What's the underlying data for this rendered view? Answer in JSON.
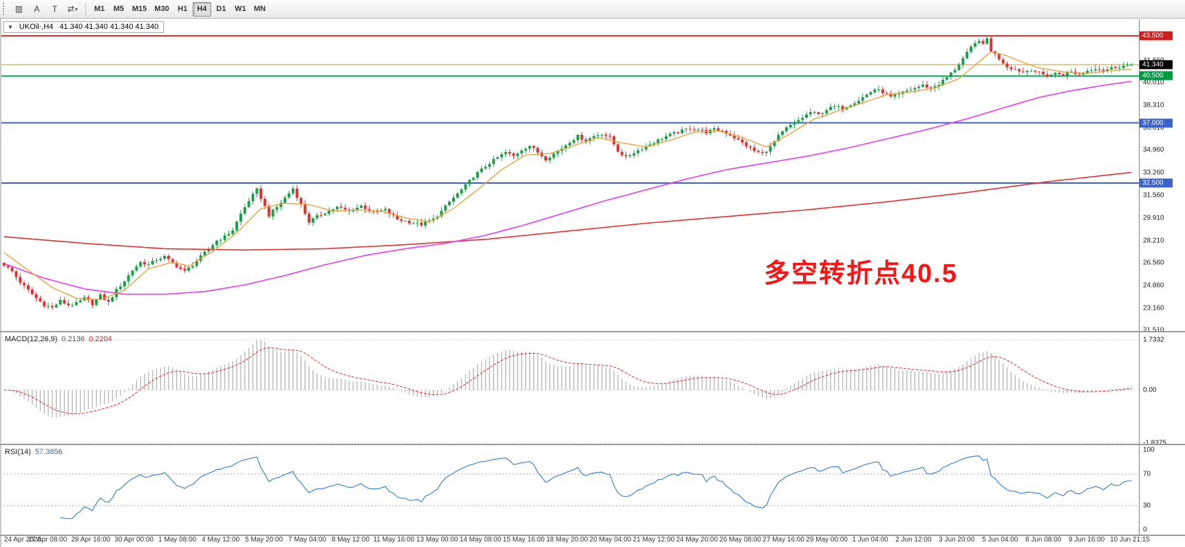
{
  "toolbar": {
    "icons": [
      {
        "name": "chart-grid-icon",
        "glyph": "▥"
      },
      {
        "name": "annotation-a-icon",
        "glyph": "A"
      },
      {
        "name": "text-tool-icon",
        "glyph": "T"
      },
      {
        "name": "cycles-tool-icon",
        "glyph": "⇄"
      }
    ],
    "dropdown_arrow": "▾",
    "timeframes": [
      "M1",
      "M5",
      "M15",
      "M30",
      "H1",
      "H4",
      "D1",
      "W1",
      "MN"
    ],
    "active_timeframe": "H4"
  },
  "chart": {
    "collapse_arrow": "▼",
    "symbol_title": "UKOil·,H4",
    "ohlc": "41.340 41.340 41.340 41.340",
    "annotation": "多空转折点40.5",
    "current_price": "41.340",
    "price_ticks": [
      {
        "label": "41.660",
        "price": 41.66
      },
      {
        "label": "40.010",
        "price": 40.01
      },
      {
        "label": "38.310",
        "price": 38.31
      },
      {
        "label": "36.610",
        "price": 36.61
      },
      {
        "label": "34.960",
        "price": 34.96
      },
      {
        "label": "33.260",
        "price": 33.26
      },
      {
        "label": "31.560",
        "price": 31.56
      },
      {
        "label": "29.910",
        "price": 29.91
      },
      {
        "label": "28.210",
        "price": 28.21
      },
      {
        "label": "26.560",
        "price": 26.56
      },
      {
        "label": "24.860",
        "price": 24.86
      },
      {
        "label": "23.160",
        "price": 23.16
      },
      {
        "label": "21.510",
        "price": 21.51
      }
    ],
    "badges": [
      {
        "label": "43.500",
        "price": 43.5,
        "color": "#cc2020"
      },
      {
        "label": "41.340",
        "price": 41.34,
        "color": "#000000"
      },
      {
        "label": "40.500",
        "price": 40.5,
        "color": "#009a42"
      },
      {
        "label": "37.000",
        "price": 37.0,
        "color": "#3a62c8"
      },
      {
        "label": "32.500",
        "price": 32.5,
        "color": "#3a62c8"
      }
    ]
  },
  "macd": {
    "name": "MACD(12,26,9)",
    "value_main": "0.2136",
    "value_signal": "0.2204",
    "ticks": [
      {
        "label": "1.7332",
        "value": 1.7332
      },
      {
        "label": "0.00",
        "value": 0
      },
      {
        "label": "-1.8375",
        "value": -1.8375
      }
    ]
  },
  "rsi": {
    "name": "RSI(14)",
    "value": "57.3856",
    "ticks": [
      {
        "label": "100",
        "value": 100
      },
      {
        "label": "70",
        "value": 70
      },
      {
        "label": "30",
        "value": 30
      },
      {
        "label": "0",
        "value": 0
      }
    ]
  },
  "time_axis": {
    "labels": [
      "24 Apr 2020",
      "27 Apr 08:00",
      "28 Apr 16:00",
      "30 Apr 00:00",
      "1 May 08:00",
      "4 May 12:00",
      "5 May 20:00",
      "7 May 04:00",
      "8 May 12:00",
      "11 May 16:00",
      "13 May 00:00",
      "14 May 08:00",
      "15 May 16:00",
      "18 May 20:00",
      "20 May 04:00",
      "21 May 12:00",
      "24 May 20:00",
      "26 May 08:00",
      "27 May 16:00",
      "29 May 00:00",
      "1 Jun 04:00",
      "2 Jun 12:00",
      "3 Jun 20:00",
      "5 Jun 04:00",
      "8 Jun 08:00",
      "9 Jun 16:00",
      "10 Jun 21:15"
    ]
  },
  "chart_data": {
    "type": "candlestick",
    "symbol": "UKOil",
    "timeframe": "H4",
    "last_close": 41.34,
    "price_range": [
      21.51,
      43.5
    ],
    "num_candles": 282,
    "close_anchors": [
      [
        0,
        26.4
      ],
      [
        2,
        25.9
      ],
      [
        4,
        25.1
      ],
      [
        6,
        24.5
      ],
      [
        8,
        23.9
      ],
      [
        10,
        23.4
      ],
      [
        12,
        23.2
      ],
      [
        14,
        23.7
      ],
      [
        16,
        23.4
      ],
      [
        18,
        23.5
      ],
      [
        20,
        23.9
      ],
      [
        22,
        23.5
      ],
      [
        24,
        24.1
      ],
      [
        26,
        23.6
      ],
      [
        28,
        24.5
      ],
      [
        30,
        25.2
      ],
      [
        32,
        26.0
      ],
      [
        34,
        26.6
      ],
      [
        36,
        26.4
      ],
      [
        38,
        26.8
      ],
      [
        40,
        27.0
      ],
      [
        42,
        26.5
      ],
      [
        44,
        26.1
      ],
      [
        45,
        25.9
      ],
      [
        47,
        26.4
      ],
      [
        49,
        27.0
      ],
      [
        51,
        27.6
      ],
      [
        53,
        28.2
      ],
      [
        55,
        28.5
      ],
      [
        57,
        29.0
      ],
      [
        59,
        30.2
      ],
      [
        61,
        31.2
      ],
      [
        63,
        32.0
      ],
      [
        64,
        31.4
      ],
      [
        66,
        30.1
      ],
      [
        68,
        30.7
      ],
      [
        70,
        31.4
      ],
      [
        72,
        32.1
      ],
      [
        74,
        30.9
      ],
      [
        76,
        29.6
      ],
      [
        78,
        30.0
      ],
      [
        80,
        30.3
      ],
      [
        83,
        30.7
      ],
      [
        86,
        30.4
      ],
      [
        89,
        30.8
      ],
      [
        92,
        30.3
      ],
      [
        95,
        30.5
      ],
      [
        98,
        29.8
      ],
      [
        101,
        29.6
      ],
      [
        104,
        29.4
      ],
      [
        107,
        29.8
      ],
      [
        109,
        30.4
      ],
      [
        111,
        31.1
      ],
      [
        113,
        31.7
      ],
      [
        115,
        32.3
      ],
      [
        117,
        33.0
      ],
      [
        119,
        33.5
      ],
      [
        121,
        34.0
      ],
      [
        123,
        34.4
      ],
      [
        125,
        34.8
      ],
      [
        127,
        34.5
      ],
      [
        129,
        35.0
      ],
      [
        131,
        35.3
      ],
      [
        133,
        34.8
      ],
      [
        135,
        34.3
      ],
      [
        137,
        34.7
      ],
      [
        139,
        35.1
      ],
      [
        141,
        35.6
      ],
      [
        143,
        36.0
      ],
      [
        145,
        35.7
      ],
      [
        147,
        36.0
      ],
      [
        149,
        36.2
      ],
      [
        151,
        35.9
      ],
      [
        153,
        34.9
      ],
      [
        155,
        34.4
      ],
      [
        157,
        34.8
      ],
      [
        159,
        35.1
      ],
      [
        161,
        35.4
      ],
      [
        163,
        35.7
      ],
      [
        165,
        36.0
      ],
      [
        167,
        36.2
      ],
      [
        169,
        36.4
      ],
      [
        171,
        36.6
      ],
      [
        173,
        36.5
      ],
      [
        175,
        36.3
      ],
      [
        177,
        36.5
      ],
      [
        179,
        36.4
      ],
      [
        181,
        36.1
      ],
      [
        183,
        35.7
      ],
      [
        185,
        35.3
      ],
      [
        187,
        34.9
      ],
      [
        189,
        34.7
      ],
      [
        191,
        35.2
      ],
      [
        193,
        36.0
      ],
      [
        195,
        36.6
      ],
      [
        197,
        37.0
      ],
      [
        199,
        37.4
      ],
      [
        201,
        37.8
      ],
      [
        203,
        37.6
      ],
      [
        205,
        38.0
      ],
      [
        207,
        38.2
      ],
      [
        209,
        38.1
      ],
      [
        211,
        38.4
      ],
      [
        213,
        38.7
      ],
      [
        215,
        39.1
      ],
      [
        217,
        39.5
      ],
      [
        219,
        39.3
      ],
      [
        221,
        38.9
      ],
      [
        223,
        39.1
      ],
      [
        225,
        39.4
      ],
      [
        227,
        39.6
      ],
      [
        229,
        39.8
      ],
      [
        231,
        39.6
      ],
      [
        233,
        39.9
      ],
      [
        235,
        40.4
      ],
      [
        237,
        41.0
      ],
      [
        239,
        41.8
      ],
      [
        241,
        42.6
      ],
      [
        243,
        43.2
      ],
      [
        244,
        42.8
      ],
      [
        245,
        43.3
      ],
      [
        246,
        42.4
      ],
      [
        248,
        41.8
      ],
      [
        250,
        41.2
      ],
      [
        252,
        41.0
      ],
      [
        254,
        40.8
      ],
      [
        256,
        41.0
      ],
      [
        258,
        40.7
      ],
      [
        260,
        40.5
      ],
      [
        262,
        40.7
      ],
      [
        264,
        40.6
      ],
      [
        266,
        40.8
      ],
      [
        268,
        40.6
      ],
      [
        270,
        40.9
      ],
      [
        272,
        41.1
      ],
      [
        274,
        40.9
      ],
      [
        276,
        41.1
      ],
      [
        278,
        41.2
      ],
      [
        281,
        41.34
      ]
    ],
    "ma_fast_anchors": [
      [
        0,
        27.3
      ],
      [
        6,
        26.0
      ],
      [
        12,
        24.7
      ],
      [
        18,
        23.9
      ],
      [
        24,
        23.8
      ],
      [
        30,
        24.5
      ],
      [
        36,
        26.1
      ],
      [
        42,
        26.6
      ],
      [
        46,
        26.3
      ],
      [
        52,
        27.4
      ],
      [
        58,
        28.8
      ],
      [
        64,
        30.6
      ],
      [
        70,
        31.0
      ],
      [
        76,
        30.9
      ],
      [
        82,
        30.4
      ],
      [
        88,
        30.5
      ],
      [
        94,
        30.4
      ],
      [
        100,
        29.9
      ],
      [
        106,
        29.6
      ],
      [
        112,
        30.6
      ],
      [
        118,
        32.0
      ],
      [
        124,
        33.5
      ],
      [
        130,
        34.6
      ],
      [
        136,
        34.7
      ],
      [
        142,
        35.3
      ],
      [
        148,
        35.9
      ],
      [
        154,
        35.5
      ],
      [
        160,
        35.2
      ],
      [
        166,
        35.7
      ],
      [
        172,
        36.3
      ],
      [
        178,
        36.4
      ],
      [
        184,
        35.9
      ],
      [
        190,
        35.2
      ],
      [
        196,
        36.2
      ],
      [
        202,
        37.3
      ],
      [
        208,
        37.9
      ],
      [
        214,
        38.5
      ],
      [
        220,
        39.1
      ],
      [
        226,
        39.3
      ],
      [
        232,
        39.6
      ],
      [
        238,
        40.3
      ],
      [
        242,
        41.3
      ],
      [
        246,
        42.3
      ],
      [
        250,
        42.0
      ],
      [
        254,
        41.5
      ],
      [
        258,
        41.1
      ],
      [
        264,
        40.8
      ],
      [
        270,
        40.7
      ],
      [
        276,
        40.9
      ],
      [
        281,
        41.0
      ]
    ],
    "ma_mid_anchors": [
      [
        0,
        26.5
      ],
      [
        10,
        25.4
      ],
      [
        20,
        24.6
      ],
      [
        30,
        24.2
      ],
      [
        40,
        24.2
      ],
      [
        50,
        24.4
      ],
      [
        60,
        24.9
      ],
      [
        70,
        25.6
      ],
      [
        80,
        26.4
      ],
      [
        90,
        27.1
      ],
      [
        100,
        27.6
      ],
      [
        110,
        28.0
      ],
      [
        120,
        28.6
      ],
      [
        130,
        29.4
      ],
      [
        140,
        30.3
      ],
      [
        150,
        31.2
      ],
      [
        160,
        32.0
      ],
      [
        170,
        32.8
      ],
      [
        180,
        33.5
      ],
      [
        190,
        34.0
      ],
      [
        200,
        34.5
      ],
      [
        210,
        35.1
      ],
      [
        220,
        35.8
      ],
      [
        230,
        36.5
      ],
      [
        240,
        37.3
      ],
      [
        250,
        38.2
      ],
      [
        258,
        38.9
      ],
      [
        266,
        39.4
      ],
      [
        274,
        39.8
      ],
      [
        281,
        40.1
      ]
    ],
    "ma_slow_anchors": [
      [
        0,
        28.5
      ],
      [
        20,
        28.0
      ],
      [
        40,
        27.6
      ],
      [
        60,
        27.5
      ],
      [
        80,
        27.6
      ],
      [
        100,
        27.9
      ],
      [
        120,
        28.3
      ],
      [
        140,
        28.9
      ],
      [
        160,
        29.5
      ],
      [
        180,
        30.0
      ],
      [
        200,
        30.5
      ],
      [
        220,
        31.1
      ],
      [
        240,
        31.8
      ],
      [
        260,
        32.6
      ],
      [
        281,
        33.3
      ]
    ],
    "hlines": [
      {
        "price": 43.5,
        "color": "#e03131",
        "width": 2
      },
      {
        "price": 41.34,
        "color": "#c8952f",
        "width": 1
      },
      {
        "price": 40.5,
        "color": "#00a651",
        "width": 2
      },
      {
        "price": 37.0,
        "color": "#3a62c8",
        "width": 2
      },
      {
        "price": 32.5,
        "color": "#3a62c8",
        "width": 2
      }
    ],
    "up_color": "#1ca04b",
    "down_color": "#dd3333",
    "ma_fast_color": "#e8a33d",
    "ma_mid_color": "#e93cec",
    "ma_slow_color": "#e03131",
    "macd": {
      "params": [
        12,
        26,
        9
      ],
      "range": [
        -1.8375,
        1.7332
      ],
      "last_main": 0.2136,
      "last_signal": 0.2204
    },
    "rsi": {
      "period": 14,
      "last": 57.3856,
      "levels": [
        70,
        30
      ],
      "range": [
        0,
        100
      ]
    }
  }
}
